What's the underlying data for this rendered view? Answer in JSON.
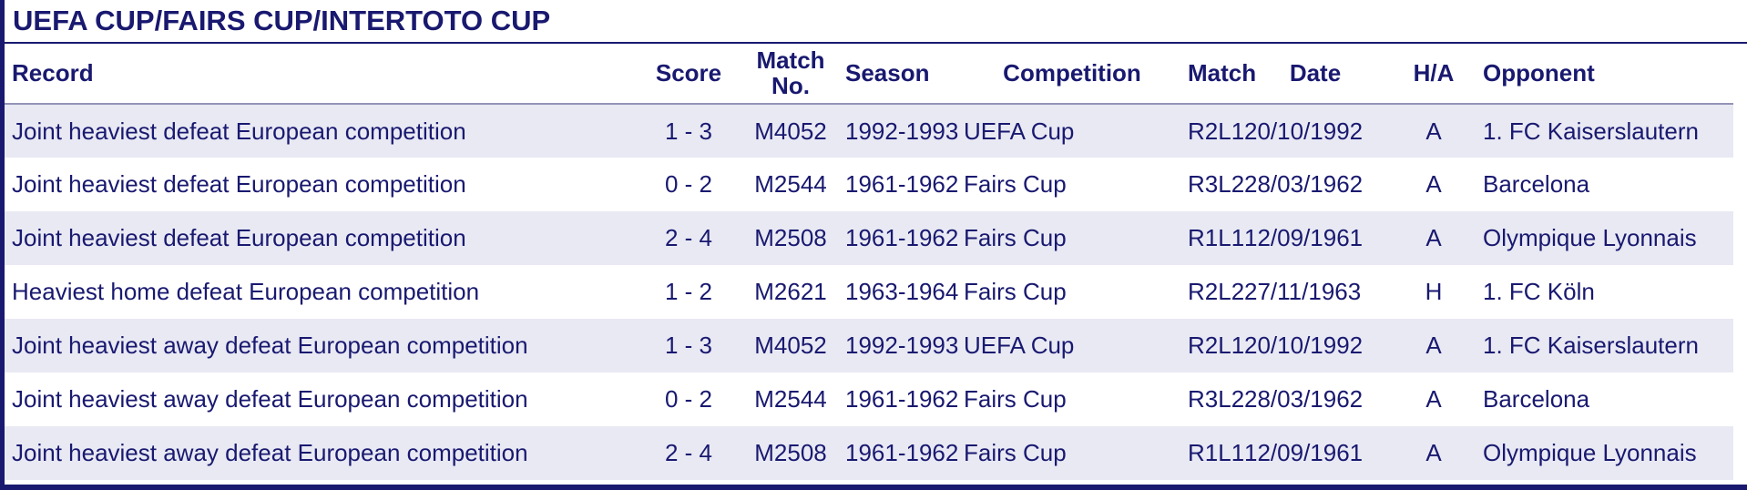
{
  "title": "UEFA CUP/FAIRS CUP/INTERTOTO CUP",
  "colors": {
    "accent_navy": "#191970",
    "row_alt_bg": "#e9e9f4",
    "header_divider": "#9393b8",
    "background": "#ffffff"
  },
  "table": {
    "columns": [
      "Record",
      "Score",
      "Match No.",
      "Season",
      "Competition",
      "Match",
      "Date",
      "H/A",
      "Opponent"
    ],
    "rows": [
      {
        "record": "Joint heaviest defeat European competition",
        "score": "1 - 3",
        "match_no": "M4052",
        "season": "1992-1993",
        "competition": "UEFA Cup",
        "match": "R2L1",
        "date": "20/10/1992",
        "ha": "A",
        "opponent": "1. FC Kaiserslautern"
      },
      {
        "record": "Joint heaviest defeat European competition",
        "score": "0 - 2",
        "match_no": "M2544",
        "season": "1961-1962",
        "competition": "Fairs Cup",
        "match": "R3L2",
        "date": "28/03/1962",
        "ha": "A",
        "opponent": "Barcelona"
      },
      {
        "record": "Joint heaviest defeat European competition",
        "score": "2 - 4",
        "match_no": "M2508",
        "season": "1961-1962",
        "competition": "Fairs Cup",
        "match": "R1L1",
        "date": "12/09/1961",
        "ha": "A",
        "opponent": "Olympique Lyonnais"
      },
      {
        "record": "Heaviest home defeat European competition",
        "score": "1 - 2",
        "match_no": "M2621",
        "season": "1963-1964",
        "competition": "Fairs Cup",
        "match": "R2L2",
        "date": "27/11/1963",
        "ha": "H",
        "opponent": "1. FC Köln"
      },
      {
        "record": "Joint heaviest away defeat European competition",
        "score": "1 - 3",
        "match_no": "M4052",
        "season": "1992-1993",
        "competition": "UEFA Cup",
        "match": "R2L1",
        "date": "20/10/1992",
        "ha": "A",
        "opponent": "1. FC Kaiserslautern"
      },
      {
        "record": "Joint heaviest away defeat European competition",
        "score": "0 - 2",
        "match_no": "M2544",
        "season": "1961-1962",
        "competition": "Fairs Cup",
        "match": "R3L2",
        "date": "28/03/1962",
        "ha": "A",
        "opponent": "Barcelona"
      },
      {
        "record": "Joint heaviest away defeat European competition",
        "score": "2 - 4",
        "match_no": "M2508",
        "season": "1961-1962",
        "competition": "Fairs Cup",
        "match": "R1L1",
        "date": "12/09/1961",
        "ha": "A",
        "opponent": "Olympique Lyonnais"
      }
    ]
  }
}
